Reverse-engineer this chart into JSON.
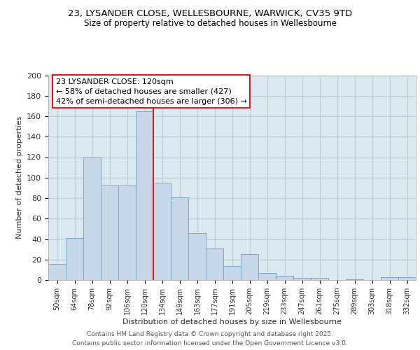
{
  "title1": "23, LYSANDER CLOSE, WELLESBOURNE, WARWICK, CV35 9TD",
  "title2": "Size of property relative to detached houses in Wellesbourne",
  "xlabel": "Distribution of detached houses by size in Wellesbourne",
  "ylabel": "Number of detached properties",
  "categories": [
    "50sqm",
    "64sqm",
    "78sqm",
    "92sqm",
    "106sqm",
    "120sqm",
    "134sqm",
    "149sqm",
    "163sqm",
    "177sqm",
    "191sqm",
    "205sqm",
    "219sqm",
    "233sqm",
    "247sqm",
    "261sqm",
    "275sqm",
    "289sqm",
    "303sqm",
    "318sqm",
    "332sqm"
  ],
  "values": [
    16,
    41,
    120,
    92,
    92,
    165,
    95,
    81,
    46,
    31,
    14,
    25,
    7,
    4,
    2,
    2,
    0,
    1,
    0,
    3,
    3
  ],
  "highlight_index": 5,
  "bar_color": "#c8d8e8",
  "bar_edge_color": "#7aaac8",
  "highlight_edge_color": "#cc2222",
  "annotation_text": "23 LYSANDER CLOSE: 120sqm\n← 58% of detached houses are smaller (427)\n42% of semi-detached houses are larger (306) →",
  "annotation_box_color": "#ffffff",
  "annotation_border_color": "#cc2222",
  "ylim": [
    0,
    200
  ],
  "yticks": [
    0,
    20,
    40,
    60,
    80,
    100,
    120,
    140,
    160,
    180,
    200
  ],
  "grid_color": "#c0ccd8",
  "bg_color": "#dce8f0",
  "footer1": "Contains HM Land Registry data © Crown copyright and database right 2025.",
  "footer2": "Contains public sector information licensed under the Open Government Licence v3.0."
}
